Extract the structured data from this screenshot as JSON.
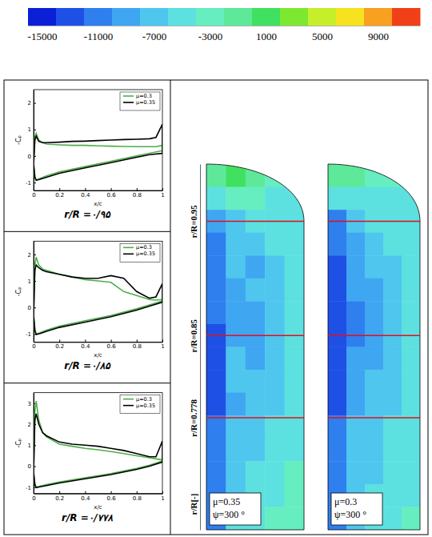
{
  "chart_data": [
    {
      "type": "line",
      "title": "r/R =۰/۹۵",
      "x_label": "x/c",
      "y_label": "-Cₚ",
      "xlim": [
        0,
        1
      ],
      "xticks": [
        0,
        0.2,
        0.4,
        0.6,
        0.8,
        1
      ],
      "ylim": [
        -1.3,
        2.5
      ],
      "yticks": [
        -1,
        0,
        1,
        2
      ],
      "legend": "upper right",
      "series": [
        {
          "name": "μ=0.3",
          "color": "#4daf4a",
          "x": [
            0,
            0.01,
            0.02,
            0.04,
            0.07,
            0.1,
            0.2,
            0.3,
            0.4,
            0.5,
            0.6,
            0.7,
            0.8,
            0.9,
            0.95,
            1,
            1,
            0.9,
            0.8,
            0.6,
            0.4,
            0.2,
            0.1,
            0.05,
            0.02,
            0.01,
            0
          ],
          "values": [
            -0.3,
            0.7,
            0.85,
            0.6,
            0.5,
            0.45,
            0.42,
            0.4,
            0.4,
            0.38,
            0.37,
            0.36,
            0.35,
            0.35,
            0.35,
            0.4,
            0.2,
            0.1,
            0.0,
            -0.2,
            -0.4,
            -0.6,
            -0.75,
            -0.85,
            -0.9,
            -0.8,
            -0.3
          ]
        },
        {
          "name": "μ=0.35",
          "color": "#000000",
          "x": [
            0,
            0.01,
            0.02,
            0.04,
            0.07,
            0.1,
            0.2,
            0.3,
            0.4,
            0.5,
            0.6,
            0.7,
            0.8,
            0.9,
            0.95,
            1,
            1,
            0.9,
            0.8,
            0.6,
            0.4,
            0.2,
            0.1,
            0.05,
            0.02,
            0.01,
            0
          ],
          "values": [
            -0.3,
            0.6,
            0.75,
            0.55,
            0.5,
            0.5,
            0.52,
            0.55,
            0.56,
            0.58,
            0.6,
            0.62,
            0.63,
            0.65,
            0.7,
            1.2,
            0.1,
            0.05,
            -0.05,
            -0.25,
            -0.45,
            -0.65,
            -0.8,
            -0.88,
            -0.92,
            -0.8,
            -0.3
          ]
        }
      ]
    },
    {
      "type": "line",
      "title": "r/R =۰/۸۵",
      "x_label": "x/c",
      "y_label": "-Cₚ",
      "xlim": [
        0,
        1
      ],
      "xticks": [
        0,
        0.2,
        0.4,
        0.6,
        0.8,
        1
      ],
      "ylim": [
        -1.3,
        2.5
      ],
      "yticks": [
        -1,
        0,
        1,
        2
      ],
      "legend": "upper right",
      "series": [
        {
          "name": "μ=0.3",
          "color": "#4daf4a",
          "x": [
            0,
            0.01,
            0.02,
            0.04,
            0.07,
            0.1,
            0.2,
            0.3,
            0.4,
            0.5,
            0.6,
            0.7,
            0.8,
            0.9,
            0.95,
            1,
            1,
            0.9,
            0.8,
            0.6,
            0.4,
            0.2,
            0.1,
            0.05,
            0.02,
            0.01,
            0
          ],
          "values": [
            -0.3,
            1.6,
            1.9,
            1.6,
            1.45,
            1.4,
            1.25,
            1.15,
            1.05,
            1.0,
            0.95,
            0.6,
            0.45,
            0.3,
            0.28,
            0.3,
            0.25,
            0.1,
            -0.05,
            -0.3,
            -0.5,
            -0.7,
            -0.85,
            -0.95,
            -1.0,
            -0.85,
            -0.3
          ]
        },
        {
          "name": "μ=0.35",
          "color": "#000000",
          "x": [
            0,
            0.01,
            0.02,
            0.04,
            0.07,
            0.1,
            0.2,
            0.3,
            0.4,
            0.5,
            0.6,
            0.7,
            0.8,
            0.9,
            0.95,
            1,
            1,
            0.9,
            0.8,
            0.6,
            0.4,
            0.2,
            0.1,
            0.05,
            0.02,
            0.01,
            0
          ],
          "values": [
            -0.3,
            1.4,
            1.6,
            1.5,
            1.4,
            1.35,
            1.25,
            1.15,
            1.1,
            1.1,
            1.2,
            1.1,
            0.6,
            0.35,
            0.4,
            0.9,
            0.2,
            0.05,
            -0.1,
            -0.35,
            -0.55,
            -0.75,
            -0.9,
            -0.98,
            -1.02,
            -0.85,
            -0.3
          ]
        }
      ]
    },
    {
      "type": "line",
      "title": "r/R =۰/۷۷۸",
      "x_label": "x/c",
      "y_label": "-Cₚ",
      "xlim": [
        0,
        1
      ],
      "xticks": [
        0,
        0.2,
        0.4,
        0.6,
        0.8,
        1
      ],
      "ylim": [
        -1.3,
        3.5
      ],
      "yticks": [
        -1,
        0,
        1,
        2,
        3
      ],
      "legend": "upper right",
      "series": [
        {
          "name": "μ=0.3",
          "color": "#4daf4a",
          "x": [
            0,
            0.01,
            0.02,
            0.04,
            0.07,
            0.1,
            0.2,
            0.3,
            0.4,
            0.5,
            0.6,
            0.7,
            0.8,
            0.9,
            0.95,
            1,
            1,
            0.9,
            0.8,
            0.6,
            0.4,
            0.2,
            0.1,
            0.05,
            0.02,
            0.01,
            0
          ],
          "values": [
            -0.3,
            2.6,
            3.1,
            2.2,
            1.6,
            1.4,
            1.05,
            0.95,
            0.85,
            0.78,
            0.7,
            0.6,
            0.5,
            0.4,
            0.35,
            0.3,
            0.25,
            0.05,
            -0.1,
            -0.35,
            -0.55,
            -0.75,
            -0.88,
            -0.95,
            -1.0,
            -0.85,
            -0.3
          ]
        },
        {
          "name": "μ=0.35",
          "color": "#000000",
          "x": [
            0,
            0.01,
            0.02,
            0.04,
            0.07,
            0.1,
            0.2,
            0.3,
            0.4,
            0.5,
            0.6,
            0.7,
            0.8,
            0.9,
            0.95,
            1,
            1,
            0.9,
            0.8,
            0.6,
            0.4,
            0.2,
            0.1,
            0.05,
            0.02,
            0.01,
            0
          ],
          "values": [
            -0.3,
            2.2,
            2.5,
            2.0,
            1.6,
            1.45,
            1.15,
            1.05,
            1.0,
            0.95,
            0.85,
            0.75,
            0.6,
            0.45,
            0.45,
            1.2,
            0.2,
            0.0,
            -0.15,
            -0.4,
            -0.6,
            -0.8,
            -0.92,
            -0.98,
            -1.02,
            -0.88,
            -0.3
          ]
        }
      ]
    },
    {
      "type": "heatmap",
      "y_label": "r/R[-]",
      "tick_labels": "y",
      "xlim": [
        0,
        1
      ],
      "ylim": [
        0.68,
        1.0
      ],
      "yticks": [
        {
          "value": 0.95,
          "label": "r/R=0.95"
        },
        {
          "value": 0.85,
          "label": "r/R=0.85"
        },
        {
          "value": 0.778,
          "label": "r/R=0.778"
        }
      ],
      "x": [
        0.1,
        0.3,
        0.5,
        0.7,
        0.9
      ],
      "y": [
        0.99,
        0.97,
        0.95,
        0.93,
        0.91,
        0.89,
        0.87,
        0.85,
        0.83,
        0.81,
        0.79,
        0.77,
        0.75,
        0.73,
        0.71,
        0.69
      ],
      "panels": [
        {
          "lines": [
            "μ=0.35",
            "ψ=300 °"
          ],
          "cells": [
            [
              -1000,
              1000,
              -1000,
              -3000,
              -3000
            ],
            [
              -5000,
              -3000,
              -3000,
              -5000,
              -5000
            ],
            [
              -9000,
              -7000,
              -5000,
              -5000,
              -5000
            ],
            [
              -11000,
              -7000,
              -7000,
              -5000,
              -5000
            ],
            [
              -11000,
              -7000,
              -9000,
              -7000,
              -5000
            ],
            [
              -11000,
              -9000,
              -7000,
              -7000,
              -5000
            ],
            [
              -11000,
              -9000,
              -9000,
              -7000,
              -5000
            ],
            [
              -13000,
              -9000,
              -9000,
              -7000,
              -5000
            ],
            [
              -13000,
              -7000,
              -9000,
              -7000,
              -5000
            ],
            [
              -13000,
              -7000,
              -7000,
              -7000,
              -5000
            ],
            [
              -13000,
              -9000,
              -7000,
              -7000,
              -5000
            ],
            [
              -11000,
              -7000,
              -7000,
              -5000,
              -5000
            ],
            [
              -11000,
              -7000,
              -7000,
              -5000,
              -5000
            ],
            [
              -11000,
              -7000,
              -5000,
              -5000,
              -3000
            ],
            [
              -11000,
              -7000,
              -5000,
              -5000,
              -3000
            ],
            [
              -11000,
              -5000,
              -5000,
              -3000,
              -3000
            ]
          ]
        },
        {
          "lines": [
            "μ=0.3",
            "ψ=300 °"
          ],
          "cells": [
            [
              -1000,
              -1000,
              -3000,
              -3000,
              -3000
            ],
            [
              -5000,
              -5000,
              -5000,
              -5000,
              -5000
            ],
            [
              -11000,
              -7000,
              -5000,
              -5000,
              -5000
            ],
            [
              -11000,
              -9000,
              -7000,
              -5000,
              -5000
            ],
            [
              -13000,
              -9000,
              -7000,
              -7000,
              -5000
            ],
            [
              -13000,
              -9000,
              -9000,
              -7000,
              -5000
            ],
            [
              -13000,
              -11000,
              -9000,
              -7000,
              -5000
            ],
            [
              -13000,
              -11000,
              -9000,
              -7000,
              -5000
            ],
            [
              -13000,
              -9000,
              -9000,
              -7000,
              -5000
            ],
            [
              -13000,
              -9000,
              -7000,
              -7000,
              -5000
            ],
            [
              -13000,
              -9000,
              -7000,
              -7000,
              -5000
            ],
            [
              -11000,
              -7000,
              -7000,
              -5000,
              -5000
            ],
            [
              -11000,
              -7000,
              -7000,
              -5000,
              -5000
            ],
            [
              -11000,
              -7000,
              -7000,
              -5000,
              -5000
            ],
            [
              -11000,
              -7000,
              -5000,
              -5000,
              -5000
            ],
            [
              -11000,
              -7000,
              -5000,
              -5000,
              -3000
            ]
          ]
        }
      ],
      "colorbar": {
        "range": [
          -16000,
          12000
        ],
        "ticks": [
          -15000,
          -11000,
          -7000,
          -3000,
          1000,
          5000,
          9000
        ],
        "colors": [
          "#0b1fd6",
          "#1f50e6",
          "#2f7fef",
          "#3fa6f2",
          "#4fc6ee",
          "#5de0e0",
          "#66eec0",
          "#5ee89a",
          "#40e060",
          "#7de830",
          "#c6ee2a",
          "#f6e21e",
          "#f8a020",
          "#f04018"
        ]
      }
    }
  ]
}
